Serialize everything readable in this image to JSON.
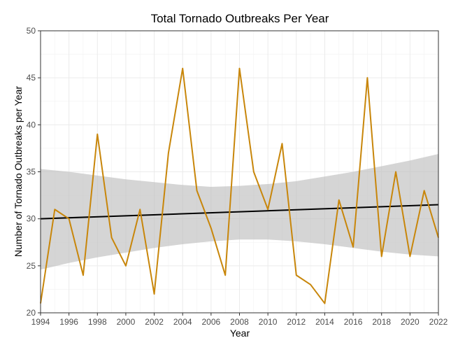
{
  "chart_data": {
    "type": "line",
    "title": "Total Tornado Outbreaks Per Year",
    "xlabel": "Year",
    "ylabel": "Number of Tornado Outbreaks per Year",
    "xlim": [
      1994,
      2022
    ],
    "ylim": [
      20,
      50
    ],
    "x_ticks": [
      "1994",
      "1996",
      "1998",
      "2000",
      "2002",
      "2004",
      "2006",
      "2008",
      "2010",
      "2012",
      "2014",
      "2016",
      "2018",
      "2020",
      "2022"
    ],
    "y_ticks": [
      "20",
      "25",
      "30",
      "35",
      "40",
      "45",
      "50"
    ],
    "grid": true,
    "colors": {
      "series": "#c8860a",
      "trend": "#000000",
      "band": "#bebebe"
    },
    "series": [
      {
        "x": [
          1994,
          1995,
          1996,
          1997,
          1998,
          1999,
          2000,
          2001,
          2002,
          2003,
          2004,
          2005,
          2006,
          2007,
          2008,
          2009,
          2010,
          2011,
          2012,
          2013,
          2014,
          2015,
          2016,
          2017,
          2018,
          2019,
          2020,
          2021,
          2022
        ],
        "values": [
          21,
          31,
          30,
          24,
          39,
          28,
          25,
          31,
          22,
          37,
          46,
          33,
          29,
          24,
          46,
          35,
          31,
          38,
          24,
          23,
          21,
          32,
          27,
          45,
          26,
          35,
          26,
          33,
          28
        ]
      }
    ],
    "trend": {
      "type": "linear",
      "start": [
        1994,
        30.0
      ],
      "end": [
        2022,
        31.5
      ],
      "confidence_band": {
        "x": [
          1994,
          1996,
          1998,
          2000,
          2002,
          2004,
          2006,
          2008,
          2010,
          2012,
          2014,
          2016,
          2018,
          2020,
          2022
        ],
        "lower": [
          24.6,
          25.3,
          25.9,
          26.4,
          26.9,
          27.3,
          27.6,
          27.8,
          27.8,
          27.6,
          27.3,
          26.9,
          26.5,
          26.2,
          26.0
        ],
        "upper": [
          35.3,
          35.0,
          34.6,
          34.2,
          33.9,
          33.6,
          33.4,
          33.5,
          33.7,
          34.0,
          34.5,
          35.0,
          35.6,
          36.2,
          36.9
        ]
      }
    }
  }
}
